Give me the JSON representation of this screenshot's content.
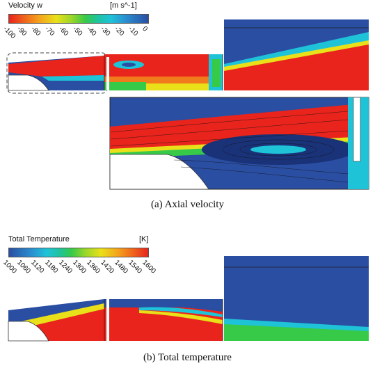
{
  "panel_a": {
    "legend_title": "Velocity w",
    "legend_unit": "[m s^-1]",
    "ticks": [
      "-100",
      "-90",
      "-80",
      "-70",
      "-60",
      "-50",
      "-40",
      "-30",
      "-20",
      "-10",
      "0"
    ],
    "caption": "(a)  Axial  velocity"
  },
  "panel_b": {
    "legend_title": "Total Temperature",
    "legend_unit": "[K]",
    "ticks": [
      "1000",
      "1060",
      "1120",
      "1180",
      "1240",
      "1300",
      "1360",
      "1420",
      "1480",
      "1540",
      "1600"
    ],
    "caption": "(b)  Total  temperature"
  },
  "colors": {
    "red": "#e8241c",
    "blue": "#2a4ea2",
    "cyan": "#1fc3d8",
    "green": "#37c948",
    "yellow": "#e9e01a",
    "orange": "#f08a1b"
  }
}
